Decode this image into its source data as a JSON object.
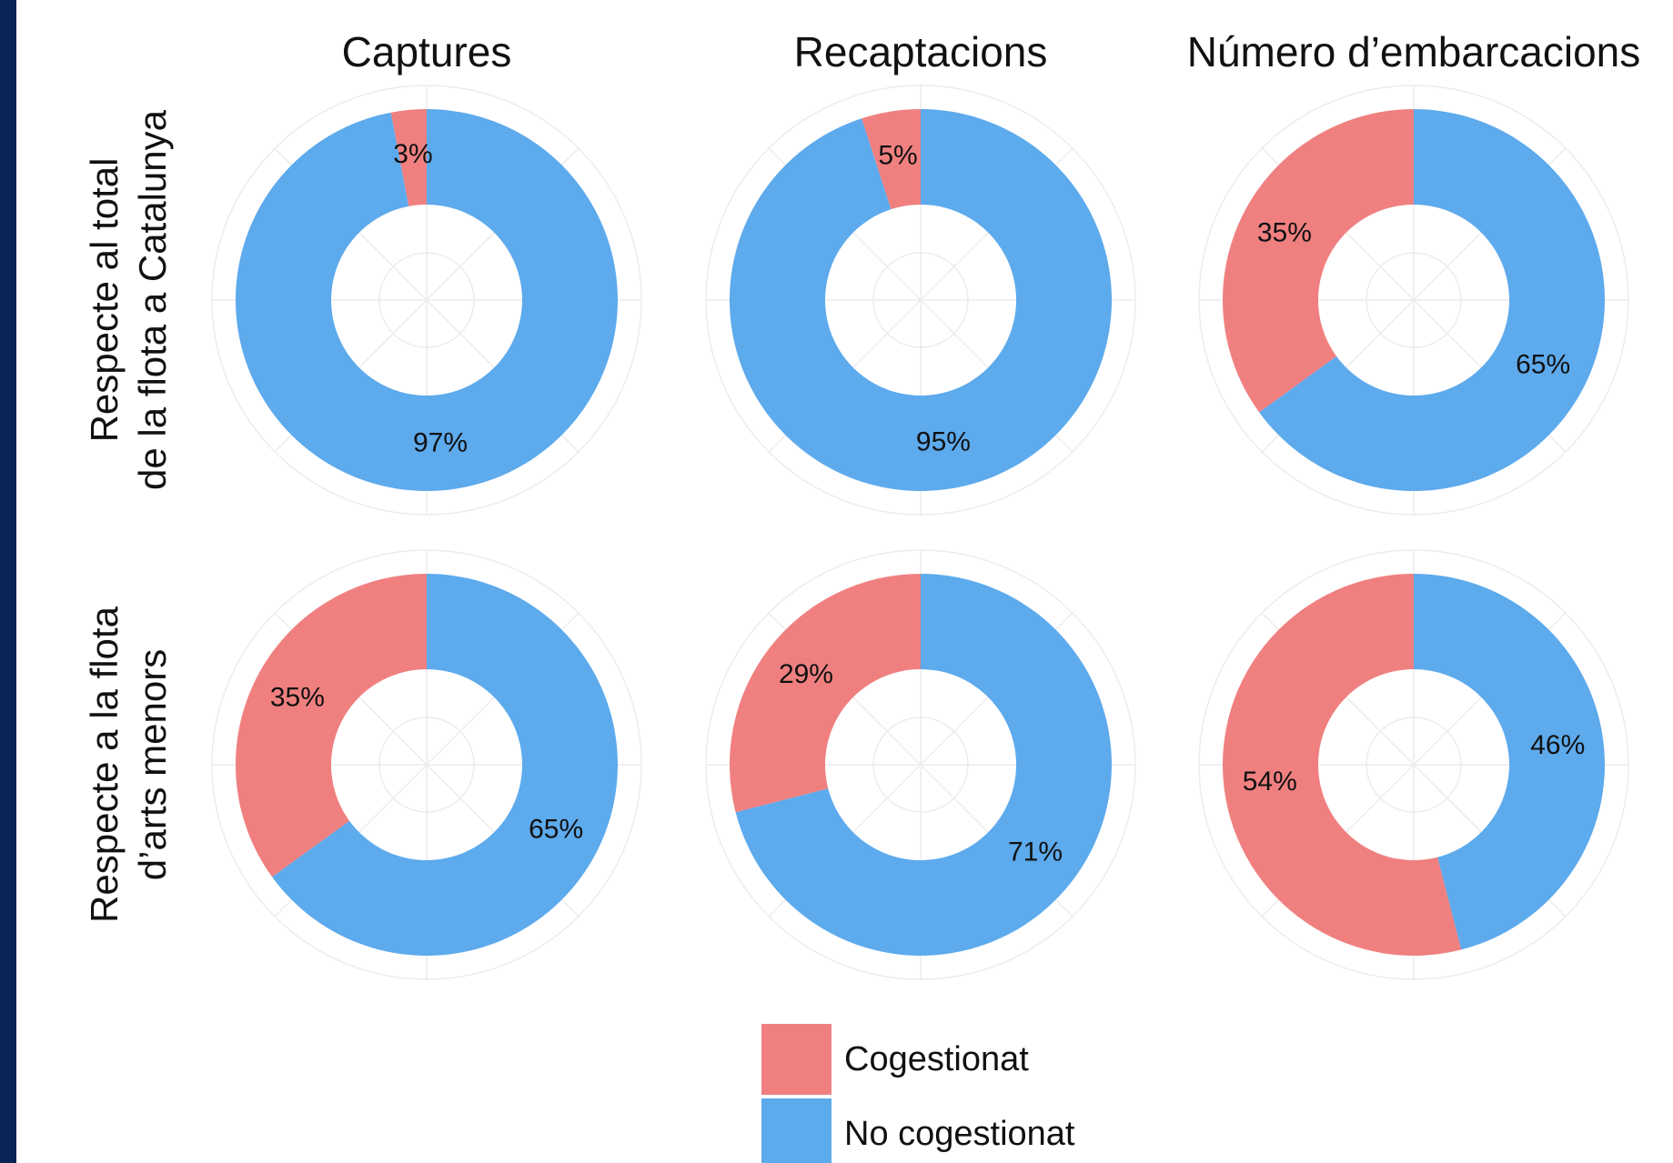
{
  "column_titles": [
    "Captures",
    "Recaptacions",
    "Número d’embarcacions"
  ],
  "row_labels": [
    [
      "Respecte al total",
      "de la flota a Catalunya"
    ],
    [
      "Respecte a la flota",
      "d’arts menors"
    ]
  ],
  "chart_data": [
    {
      "type": "donut",
      "categories": [
        "Cogestionat",
        "No cogestionat"
      ],
      "colors": [
        "#f08080",
        "#5daaed"
      ],
      "values": [
        3,
        97
      ],
      "value_labels": [
        "3%",
        "97%"
      ]
    },
    {
      "type": "donut",
      "categories": [
        "Cogestionat",
        "No cogestionat"
      ],
      "colors": [
        "#f08080",
        "#5daaed"
      ],
      "values": [
        5,
        95
      ],
      "value_labels": [
        "5%",
        "95%"
      ]
    },
    {
      "type": "donut",
      "categories": [
        "Cogestionat",
        "No cogestionat"
      ],
      "colors": [
        "#f08080",
        "#5daaed"
      ],
      "values": [
        35,
        65
      ],
      "value_labels": [
        "35%",
        "65%"
      ]
    },
    {
      "type": "donut",
      "categories": [
        "Cogestionat",
        "No cogestionat"
      ],
      "colors": [
        "#f08080",
        "#5daaed"
      ],
      "values": [
        35,
        65
      ],
      "value_labels": [
        "35%",
        "65%"
      ]
    },
    {
      "type": "donut",
      "categories": [
        "Cogestionat",
        "No cogestionat"
      ],
      "colors": [
        "#f08080",
        "#5daaed"
      ],
      "values": [
        29,
        71
      ],
      "value_labels": [
        "29%",
        "71%"
      ]
    },
    {
      "type": "donut",
      "categories": [
        "Cogestionat",
        "No cogestionat"
      ],
      "colors": [
        "#f08080",
        "#5daaed"
      ],
      "values": [
        54,
        46
      ],
      "value_labels": [
        "54%",
        "46%"
      ]
    }
  ]
}
